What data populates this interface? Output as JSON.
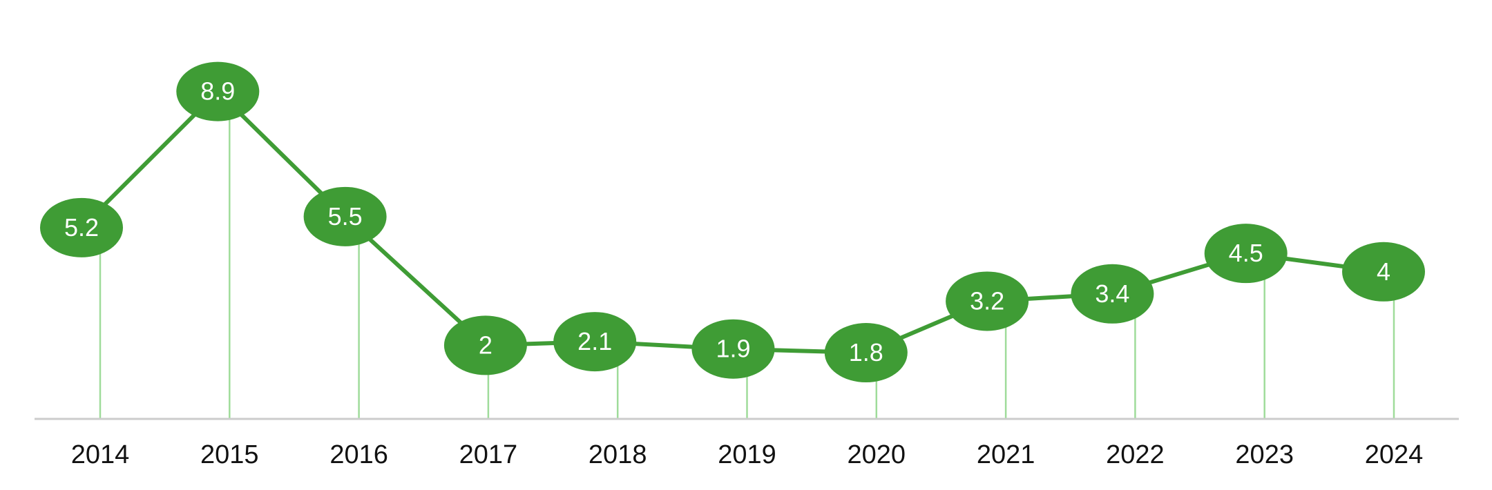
{
  "chart_data": {
    "type": "line",
    "title": "",
    "xlabel": "",
    "ylabel": "",
    "categories": [
      "2014",
      "2015",
      "2016",
      "2017",
      "2018",
      "2019",
      "2020",
      "2021",
      "2022",
      "2023",
      "2024"
    ],
    "series": [
      {
        "values": [
          5.2,
          8.9,
          5.5,
          2,
          2.1,
          1.9,
          1.8,
          3.2,
          3.4,
          4.5,
          4
        ]
      }
    ],
    "ylim": [
      0,
      9
    ],
    "grid": false,
    "legend": "none",
    "colors": {
      "line": "#3f9c35",
      "marker": "#3f9c35",
      "drop_line": "#9fdc9a",
      "axis": "#cccccc",
      "label_text": "#ffffff",
      "tick_text": "#111111"
    }
  }
}
